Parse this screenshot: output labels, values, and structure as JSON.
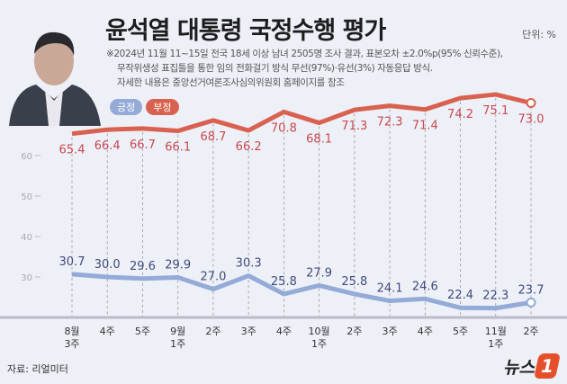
{
  "title": "윤석열 대통령 국정수행 평가",
  "unit": "단위: %",
  "notes": [
    "※2024년 11월 11~15일 전국 18세 이상 남녀 2505명 조사 결과, 표본오차 ±2.0%p(95% 신뢰수준),",
    "무작위생성 표집틀을 통한 임의 전화걸기 방식 무선(97%)·유선(3%) 자동응답 방식.",
    "자세한 내용은 중앙선거여론조사심의위원회 홈페이지를 참조"
  ],
  "source": "자료: 리얼미터",
  "logo_text": "뉴스",
  "logo_mark": "1",
  "colors": {
    "positive": "#94aad7",
    "negative": "#d9614f",
    "positive_label": "#3f4b7b",
    "negative_label": "#c9474f",
    "background": "#eef0f7"
  },
  "chart_data": {
    "type": "line",
    "title": "윤석열 대통령 국정수행 평가",
    "categories": [
      "8월\n3주",
      "4주",
      "5주",
      "9월\n1주",
      "2주",
      "3주",
      "4주",
      "10월\n1주",
      "2주",
      "3주",
      "4주",
      "5주",
      "11월\n1주",
      "2주"
    ],
    "series": [
      {
        "name": "긍정",
        "values": [
          30.7,
          30.0,
          29.6,
          29.9,
          27.0,
          30.3,
          25.8,
          27.9,
          25.8,
          24.1,
          24.6,
          22.4,
          22.3,
          23.7
        ]
      },
      {
        "name": "부정",
        "values": [
          65.4,
          66.4,
          66.7,
          66.1,
          68.7,
          66.2,
          70.8,
          68.1,
          71.3,
          72.3,
          71.4,
          74.2,
          75.1,
          73.0
        ]
      }
    ],
    "yticks": [
      30,
      40,
      50,
      60
    ],
    "legend": "top-left",
    "grid": "vertical dashed"
  }
}
